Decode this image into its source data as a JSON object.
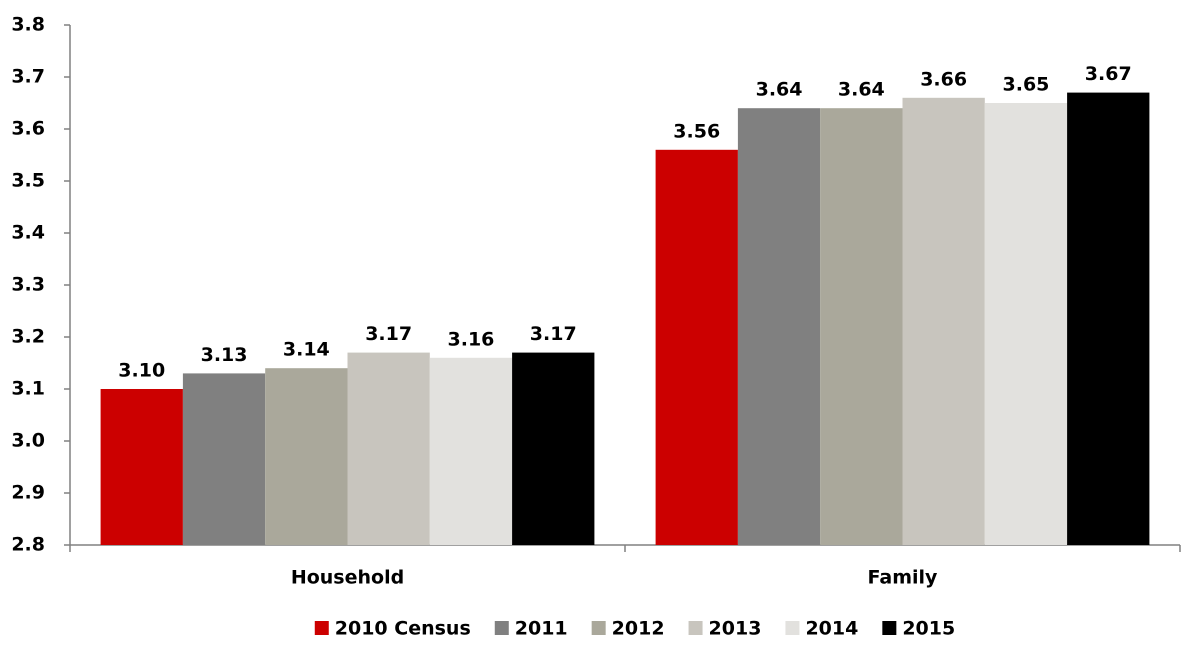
{
  "chart_data": {
    "type": "bar",
    "categories": [
      "Household",
      "Family"
    ],
    "series": [
      {
        "name": "2010 Census",
        "color": "#cc0000",
        "values": [
          3.1,
          3.56
        ],
        "value_labels": [
          "3.10",
          "3.56"
        ]
      },
      {
        "name": "2011",
        "color": "#808080",
        "values": [
          3.13,
          3.64
        ],
        "value_labels": [
          "3.13",
          "3.64"
        ]
      },
      {
        "name": "2012",
        "color": "#aaa89b",
        "values": [
          3.14,
          3.64
        ],
        "value_labels": [
          "3.14",
          "3.64"
        ]
      },
      {
        "name": "2013",
        "color": "#c8c5be",
        "values": [
          3.17,
          3.66
        ],
        "value_labels": [
          "3.17",
          "3.66"
        ]
      },
      {
        "name": "2014",
        "color": "#e2e1de",
        "values": [
          3.16,
          3.65
        ],
        "value_labels": [
          "3.16",
          "3.65"
        ]
      },
      {
        "name": "2015",
        "color": "#000000",
        "values": [
          3.17,
          3.67
        ],
        "value_labels": [
          "3.17",
          "3.67"
        ]
      }
    ],
    "ylim": [
      2.8,
      3.8
    ],
    "yticks": [
      2.8,
      2.9,
      {
        "value": 3,
        "label": "3.0"
      },
      3.1,
      3.2,
      3.3,
      3.4,
      3.5,
      3.6,
      3.7,
      3.8
    ],
    "legend": "bottom"
  }
}
